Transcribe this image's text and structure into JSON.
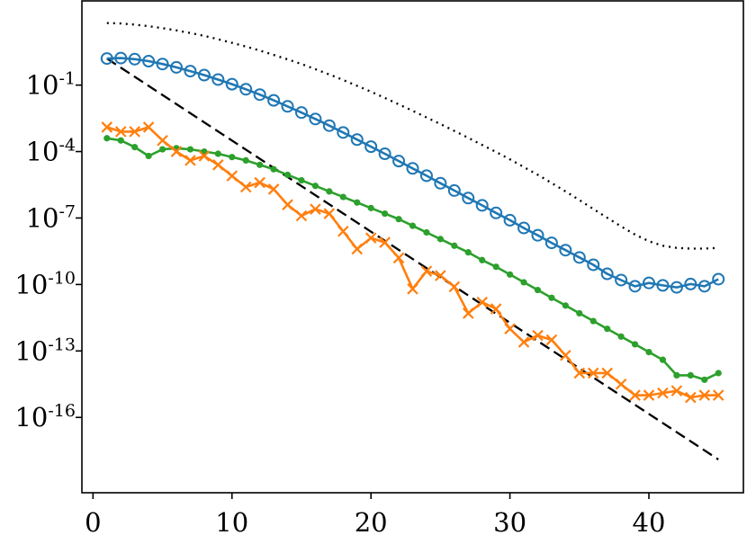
{
  "chart_data": {
    "type": "line",
    "title": "",
    "xlabel": "",
    "ylabel": "",
    "xlim": [
      -0.8,
      46.8
    ],
    "ylim": [
      -19.4,
      2.8
    ],
    "yscale": "log",
    "grid": false,
    "xticks": [
      0,
      10,
      20,
      30,
      40
    ],
    "xtick_labels": [
      "0",
      "10",
      "20",
      "30",
      "40"
    ],
    "yticks": [
      -1,
      -4,
      -7,
      -10,
      -13,
      -16
    ],
    "ytick_labels": [
      {
        "mantissa": "10",
        "exponent": "-1"
      },
      {
        "mantissa": "10",
        "exponent": "-4"
      },
      {
        "mantissa": "10",
        "exponent": "-7"
      },
      {
        "mantissa": "10",
        "exponent": "-10"
      },
      {
        "mantissa": "10",
        "exponent": "-13"
      },
      {
        "mantissa": "10",
        "exponent": "-16"
      }
    ],
    "series": [
      {
        "color": "#000000",
        "style": "dotted",
        "marker": "none",
        "x": [
          1,
          2,
          3,
          4,
          5,
          6,
          7,
          8,
          9,
          10,
          11,
          12,
          13,
          14,
          15,
          16,
          17,
          18,
          19,
          20,
          21,
          22,
          23,
          24,
          25,
          26,
          27,
          28,
          29,
          30,
          31,
          32,
          33,
          34,
          35,
          36,
          37,
          38,
          39,
          40,
          41,
          42,
          43,
          44,
          45
        ],
        "y_log10": [
          1.8,
          1.78,
          1.73,
          1.66,
          1.57,
          1.47,
          1.35,
          1.22,
          1.07,
          0.91,
          0.74,
          0.56,
          0.36,
          0.16,
          -0.05,
          -0.28,
          -0.52,
          -0.77,
          -1.03,
          -1.3,
          -1.58,
          -1.87,
          -2.16,
          -2.46,
          -2.76,
          -3.07,
          -3.38,
          -3.7,
          -4.02,
          -4.35,
          -4.7,
          -5.05,
          -5.42,
          -5.8,
          -6.19,
          -6.59,
          -6.99,
          -7.38,
          -7.75,
          -8.05,
          -8.25,
          -8.35,
          -8.38,
          -8.38,
          -8.35
        ]
      },
      {
        "color": "#000000",
        "style": "dashed",
        "marker": "none",
        "x": [
          1,
          45
        ],
        "y_log10": [
          0.2,
          -17.9
        ]
      },
      {
        "color": "#1f77b4",
        "style": "solid",
        "marker": "circle-open",
        "x": [
          1,
          2,
          3,
          4,
          5,
          6,
          7,
          8,
          9,
          10,
          11,
          12,
          13,
          14,
          15,
          16,
          17,
          18,
          19,
          20,
          21,
          22,
          23,
          24,
          25,
          26,
          27,
          28,
          29,
          30,
          31,
          32,
          33,
          34,
          35,
          36,
          37,
          38,
          39,
          40,
          41,
          42,
          43,
          44,
          45
        ],
        "y_log10": [
          0.2,
          0.22,
          0.17,
          0.08,
          -0.05,
          -0.2,
          -0.37,
          -0.55,
          -0.75,
          -0.96,
          -1.19,
          -1.43,
          -1.69,
          -1.96,
          -2.24,
          -2.53,
          -2.83,
          -3.14,
          -3.46,
          -3.78,
          -4.1,
          -4.43,
          -4.76,
          -5.09,
          -5.43,
          -5.76,
          -6.1,
          -6.43,
          -6.77,
          -7.1,
          -7.45,
          -7.78,
          -8.12,
          -8.45,
          -8.78,
          -9.11,
          -9.52,
          -9.8,
          -10.08,
          -9.93,
          -10.04,
          -10.13,
          -9.98,
          -10.08,
          -9.76
        ]
      },
      {
        "color": "#2ca02c",
        "style": "solid",
        "marker": "point",
        "x": [
          1,
          2,
          3,
          4,
          5,
          6,
          7,
          8,
          9,
          10,
          11,
          12,
          13,
          14,
          15,
          16,
          17,
          18,
          19,
          20,
          21,
          22,
          23,
          24,
          25,
          26,
          27,
          28,
          29,
          30,
          31,
          32,
          33,
          34,
          35,
          36,
          37,
          38,
          39,
          40,
          41,
          42,
          43,
          44,
          45
        ],
        "y_log10": [
          -3.4,
          -3.5,
          -3.8,
          -4.2,
          -3.9,
          -3.85,
          -3.9,
          -4,
          -4.1,
          -4.25,
          -4.4,
          -4.6,
          -4.8,
          -5.05,
          -5.3,
          -5.55,
          -5.8,
          -6.05,
          -6.3,
          -6.55,
          -6.8,
          -7.05,
          -7.35,
          -7.65,
          -7.95,
          -8.25,
          -8.55,
          -8.9,
          -9.2,
          -9.55,
          -9.9,
          -10.25,
          -10.6,
          -10.95,
          -11.3,
          -11.65,
          -12,
          -12.35,
          -12.7,
          -13.05,
          -13.4,
          -14.1,
          -14.1,
          -14.3,
          -14.0
        ]
      },
      {
        "color": "#ff7f0e",
        "style": "solid",
        "marker": "x",
        "x": [
          1,
          2,
          3,
          4,
          5,
          6,
          7,
          8,
          9,
          10,
          11,
          12,
          13,
          14,
          15,
          16,
          17,
          18,
          19,
          20,
          21,
          22,
          23,
          24,
          25,
          26,
          27,
          28,
          29,
          30,
          31,
          32,
          33,
          34,
          35,
          36,
          37,
          38,
          39,
          40,
          41,
          42,
          43,
          44,
          45
        ],
        "y_log10": [
          -2.9,
          -3.1,
          -3.1,
          -2.9,
          -3.5,
          -4,
          -4.4,
          -4.2,
          -4.6,
          -5.1,
          -5.6,
          -5.4,
          -5.7,
          -6.4,
          -6.9,
          -6.6,
          -6.8,
          -7.6,
          -8.4,
          -7.9,
          -8.1,
          -8.8,
          -10.2,
          -9.4,
          -9.6,
          -10.1,
          -11.3,
          -10.8,
          -11.1,
          -12,
          -12.6,
          -12.3,
          -12.5,
          -13.2,
          -14,
          -14,
          -14,
          -14.5,
          -15,
          -15,
          -14.9,
          -14.8,
          -15.1,
          -15,
          -15.0
        ]
      }
    ]
  }
}
